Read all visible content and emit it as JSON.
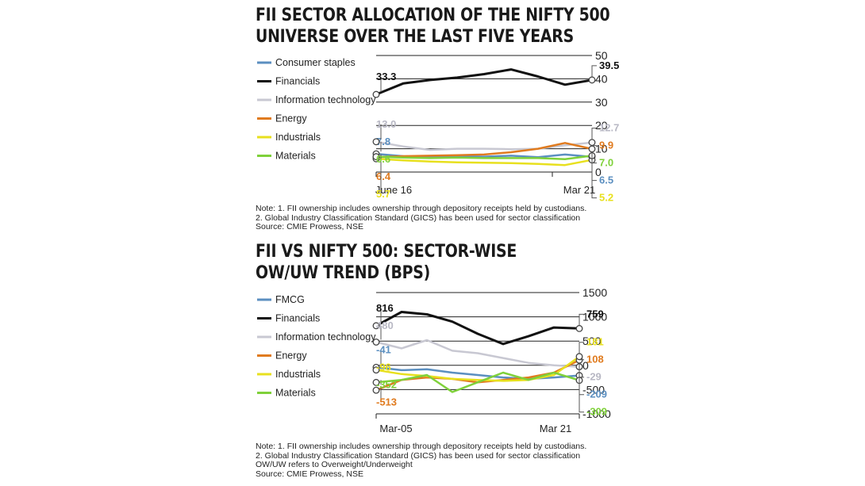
{
  "charts": [
    {
      "title_lines": [
        "FII SECTOR ALLOCATION OF THE NIFTY 500",
        "UNIVERSE OVER THE LAST FIVE YEARS"
      ],
      "notes": [
        "Note: 1. FII ownership includes ownership through depository receipts held by custodians.",
        "2. Global Industry Classification Standard (GICS) has been used for sector classification",
        "Source: CMIE Prowess, NSE"
      ]
    },
    {
      "title_lines": [
        "FII VS NIFTY 500: SECTOR-WISE",
        "OW/UW TREND (BPS)"
      ],
      "notes": [
        "Note: 1. FII ownership includes ownership through depository receipts held by custodians.",
        "2. Global Industry Classification Standard (GICS) has been used for sector classification",
        "OW/UW refers to Overweight/Underweight",
        "Source: CMIE Prowess, NSE"
      ]
    }
  ],
  "chart_data": [
    {
      "type": "line",
      "title": "FII SECTOR ALLOCATION OF THE NIFTY 500 UNIVERSE OVER THE LAST FIVE YEARS",
      "xlabel": "",
      "ylabel": "",
      "x_tick_labels": [
        "June 16",
        "Mar 21"
      ],
      "ylim": [
        0,
        50
      ],
      "y_ticks": [
        0,
        10,
        20,
        30,
        40,
        50
      ],
      "grid": true,
      "legend_position": "top-left",
      "series": [
        {
          "name": "Consumer staples",
          "color": "#5b8fc0",
          "start_label": "7.8",
          "end_label": "6.5",
          "values": [
            7.8,
            6.8,
            6.5,
            6.8,
            6.6,
            7.0,
            6.4,
            7.5,
            6.5
          ]
        },
        {
          "name": "Financials",
          "color": "#111111",
          "start_label": "33.3",
          "end_label": "39.5",
          "values": [
            33.3,
            38.0,
            39.5,
            40.5,
            42.0,
            44.0,
            41.0,
            37.5,
            39.5
          ]
        },
        {
          "name": "Information technology",
          "color": "#c8c8d2",
          "start_label": "13.0",
          "end_label": "12.7",
          "values": [
            13.0,
            11.0,
            9.5,
            10.0,
            10.0,
            9.8,
            10.0,
            11.5,
            12.7
          ]
        },
        {
          "name": "Energy",
          "color": "#e07b1f",
          "start_label": "6.4",
          "end_label": "9.9",
          "values": [
            6.4,
            6.8,
            7.0,
            7.2,
            7.5,
            8.5,
            10.0,
            12.5,
            9.9
          ]
        },
        {
          "name": "Industrials",
          "color": "#e8e01e",
          "start_label": "5.7",
          "end_label": "5.2",
          "values": [
            5.7,
            5.0,
            4.5,
            4.2,
            4.0,
            3.8,
            3.5,
            3.0,
            5.2
          ]
        },
        {
          "name": "Materials",
          "color": "#7fd13a",
          "start_label": "6.6",
          "end_label": "7.0",
          "values": [
            6.6,
            6.2,
            6.0,
            6.2,
            6.0,
            6.0,
            6.0,
            5.5,
            7.0
          ]
        }
      ]
    },
    {
      "type": "line",
      "title": "FII VS NIFTY 500: SECTOR-WISE OW/UW TREND (BPS)",
      "xlabel": "",
      "ylabel": "",
      "x_tick_labels": [
        "Mar-05",
        "Mar 21"
      ],
      "ylim": [
        -1000,
        1500
      ],
      "y_ticks": [
        -1000,
        -500,
        0,
        500,
        1000,
        1500
      ],
      "grid": true,
      "legend_position": "top-left",
      "series": [
        {
          "name": "FMCG",
          "color": "#5b8fc0",
          "start_label": "-41",
          "end_label": "-209",
          "values": [
            -41,
            -100,
            -80,
            -150,
            -200,
            -250,
            -280,
            -250,
            -209
          ]
        },
        {
          "name": "Financials",
          "color": "#111111",
          "start_label": "816",
          "end_label": "759",
          "values": [
            816,
            1100,
            1050,
            900,
            650,
            440,
            600,
            780,
            759
          ]
        },
        {
          "name": "Information technology",
          "color": "#c8c8d2",
          "start_label": "480",
          "end_label": "-29",
          "values": [
            480,
            350,
            520,
            300,
            250,
            150,
            50,
            0,
            -29
          ]
        },
        {
          "name": "Energy",
          "color": "#e07b1f",
          "start_label": "-513",
          "end_label": "108",
          "values": [
            -513,
            -300,
            -250,
            -280,
            -350,
            -300,
            -250,
            -150,
            108
          ]
        },
        {
          "name": "Industrials",
          "color": "#e8e01e",
          "start_label": "-96",
          "end_label": "181",
          "values": [
            -96,
            -180,
            -220,
            -280,
            -300,
            -320,
            -300,
            -200,
            181
          ]
        },
        {
          "name": "Materials",
          "color": "#7fd13a",
          "start_label": "-352",
          "end_label": "-309",
          "values": [
            -352,
            -300,
            -200,
            -550,
            -350,
            -150,
            -300,
            -150,
            -309
          ]
        }
      ]
    }
  ]
}
